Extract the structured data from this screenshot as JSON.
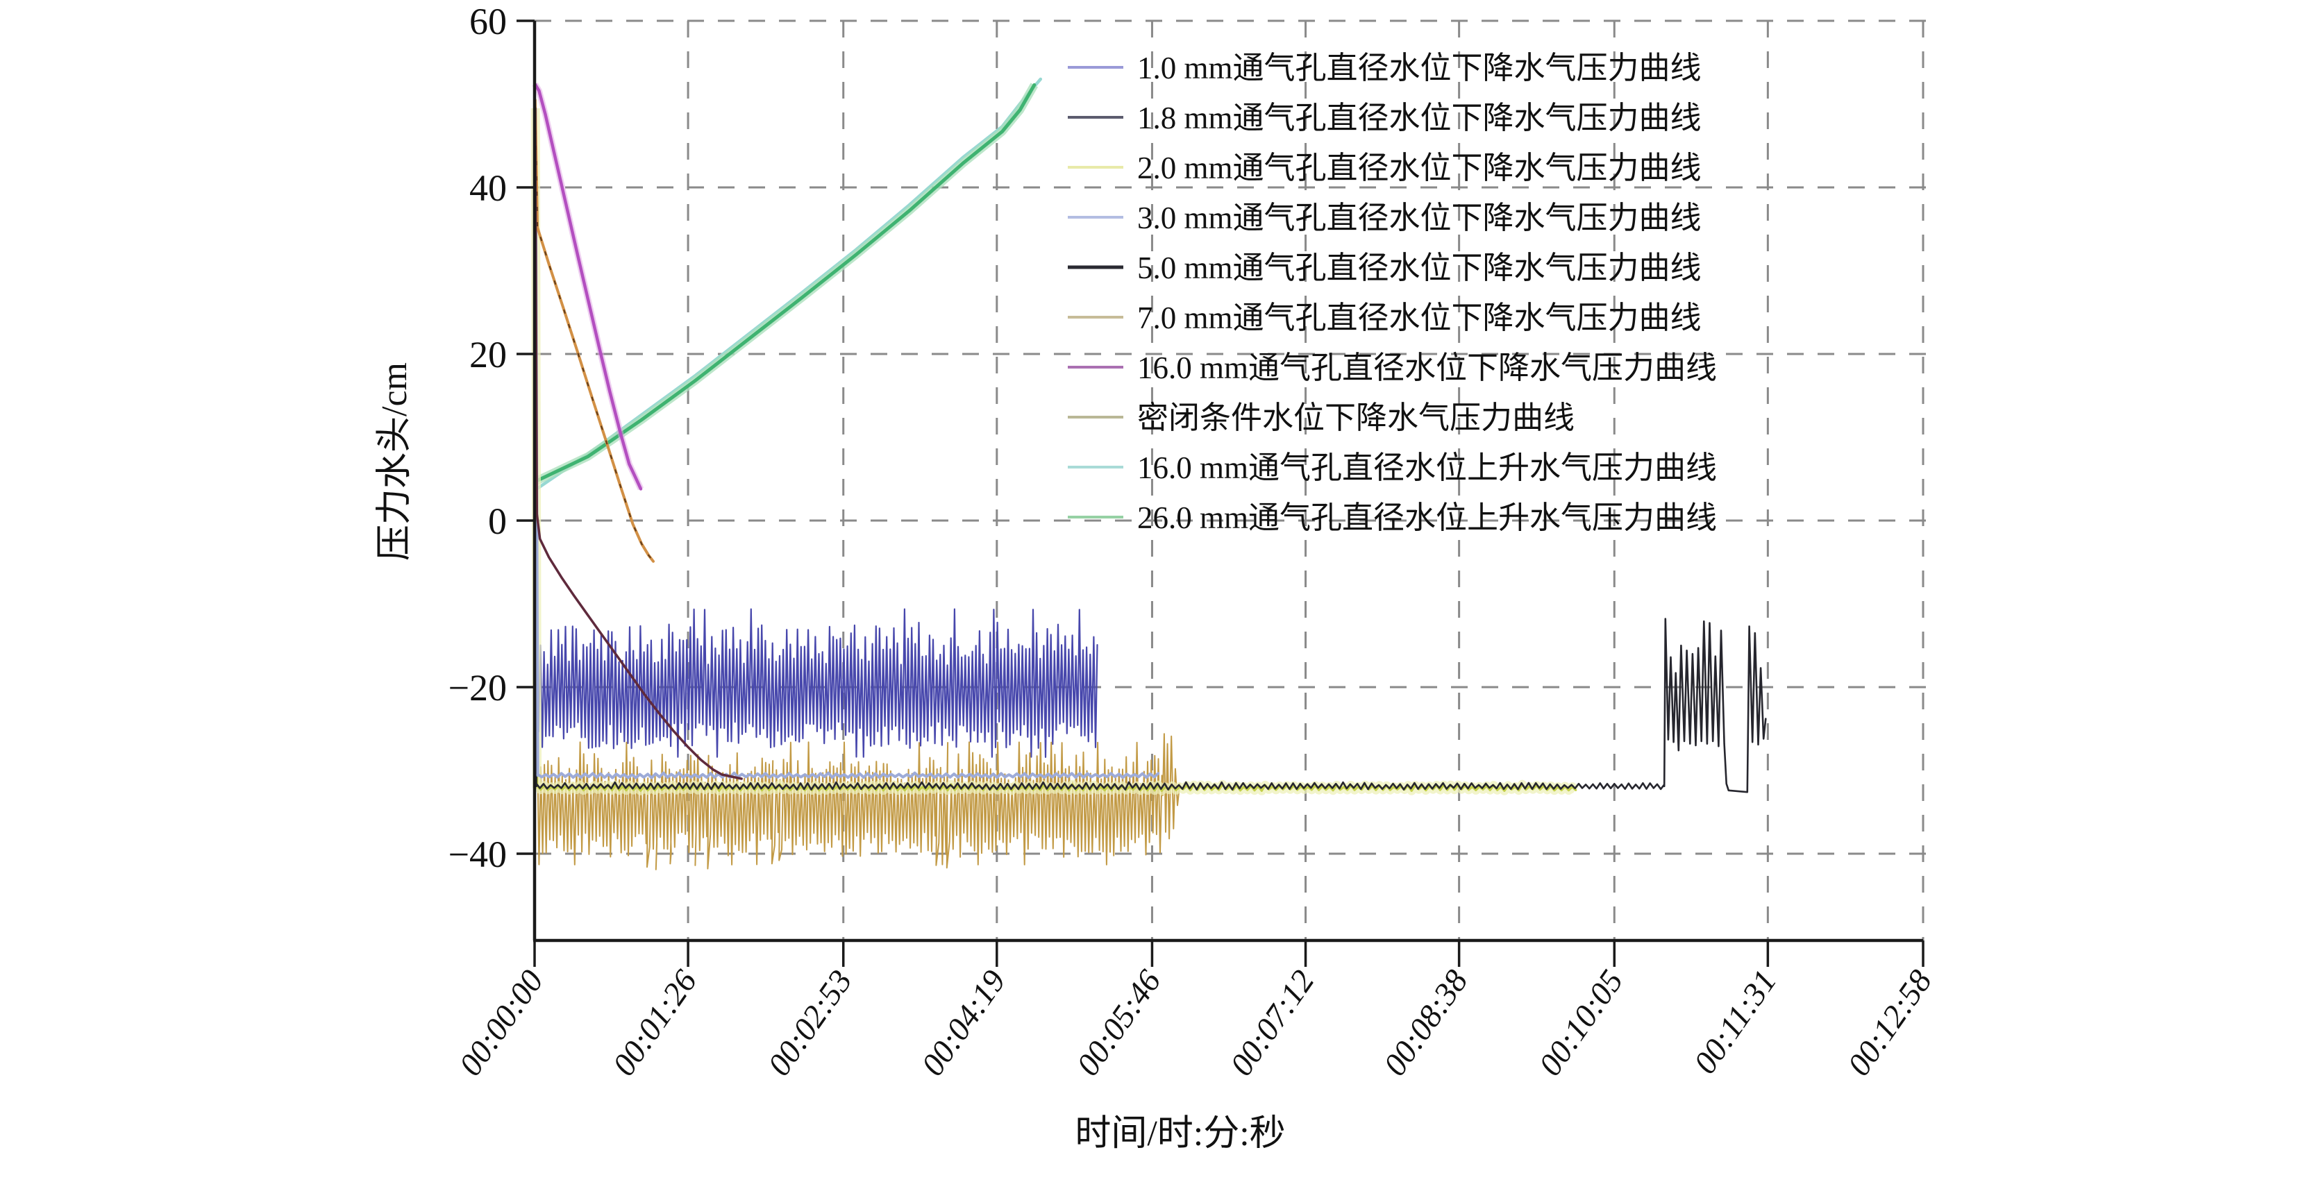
{
  "chart_data": {
    "type": "line",
    "title": "",
    "xlabel": "时间/时:分:秒",
    "ylabel": "压力水头/cm",
    "x_tick_labels": [
      "00:00:00",
      "00:01:26",
      "00:02:53",
      "00:04:19",
      "00:05:46",
      "00:07:12",
      "00:08:38",
      "00:10:05",
      "00:11:31",
      "00:12:58"
    ],
    "x_tick_seconds": [
      0,
      86,
      173,
      259,
      346,
      432,
      518,
      605,
      691,
      778
    ],
    "y_tick_labels": [
      "60",
      "40",
      "20",
      "0",
      "−20",
      "−40"
    ],
    "y_tick_values": [
      60,
      40,
      20,
      0,
      -20,
      -40
    ],
    "xlim_seconds": [
      0,
      778
    ],
    "ylim": [
      -50.4,
      60
    ],
    "grid": {
      "style": "dashed",
      "color": "#8a8a8a"
    },
    "legend_position": "upper-right-inside",
    "axis_color": "#1a1a1a",
    "series": [
      {
        "label": "1.0 mm通气孔直径水位下降水气压力曲线",
        "color": "#4747ac",
        "swatch": "#9a9ad8",
        "width": 2.2,
        "segments": [
          {
            "kind": "line",
            "pts": [
              [
                0.7,
                47
              ],
              [
                1.3,
                -12
              ]
            ]
          },
          {
            "kind": "noise",
            "t0": 1.3,
            "t1": 316,
            "dt": 1.0,
            "center": -20.2,
            "amp_up": 8.0,
            "amp_down": 7.2,
            "seed": 11
          }
        ]
      },
      {
        "label": "1.8 mm通气孔直径水位下降水气压力曲线",
        "color": "#5f2a3c",
        "swatch": "#5c5c6e",
        "width": 3.5,
        "segments": [
          {
            "kind": "line",
            "pts": [
              [
                0.35,
                49.5
              ],
              [
                1.3,
                0.8
              ],
              [
                3,
                -2.2
              ],
              [
                8,
                -4.4
              ],
              [
                15,
                -6.8
              ],
              [
                22,
                -9
              ],
              [
                30,
                -11.4
              ],
              [
                38,
                -13.8
              ],
              [
                46,
                -16.2
              ],
              [
                54,
                -18.6
              ],
              [
                62,
                -21
              ],
              [
                70,
                -23.2
              ],
              [
                78,
                -25.3
              ],
              [
                86,
                -27.2
              ],
              [
                93,
                -28.7
              ],
              [
                100,
                -29.9
              ],
              [
                105,
                -30.5
              ],
              [
                116,
                -31
              ]
            ]
          }
        ]
      },
      {
        "label": "2.0 mm通气孔直径水位下降水气压力曲线",
        "color": "#c3cf48",
        "swatch": "#e8eaa9",
        "width": 3.2,
        "glow": {
          "color": "#eef0ba",
          "width": 13,
          "opacity": 0.75
        },
        "segments": [
          {
            "kind": "line",
            "pts": [
              [
                0.45,
                49.5
              ],
              [
                1.4,
                -32.1
              ]
            ]
          },
          {
            "kind": "noise",
            "t0": 1.4,
            "t1": 585,
            "dt": 2.0,
            "center": -32.1,
            "amp_up": 0.35,
            "amp_down": 0.3,
            "seed": 3
          }
        ]
      },
      {
        "label": "3.0 mm通气孔直径水位下降水气压力曲线",
        "color": "#9dabd8",
        "swatch": "#b3bde2",
        "width": 4,
        "segments": [
          {
            "kind": "line",
            "pts": [
              [
                0.55,
                49.5
              ],
              [
                1.8,
                -30.6
              ]
            ]
          },
          {
            "kind": "noise",
            "t0": 1.8,
            "t1": 350,
            "dt": 2.2,
            "center": -30.6,
            "amp_up": 0.25,
            "amp_down": 0.25,
            "seed": 4
          }
        ]
      },
      {
        "label": "5.0 mm通气孔直径水位下降水气压力曲线",
        "color": "#26262e",
        "swatch": "#2a2a32",
        "width": 2.6,
        "segments": [
          {
            "kind": "line",
            "pts": [
              [
                0.25,
                49.5
              ],
              [
                1.0,
                -31.9
              ]
            ]
          },
          {
            "kind": "noise",
            "t0": 1.0,
            "t1": 633,
            "dt": 2.0,
            "center": -31.9,
            "amp_up": 0.4,
            "amp_down": 0.35,
            "seed": 5
          },
          {
            "kind": "line",
            "pts": [
              [
                633,
                -31.9
              ],
              [
                633.6,
                -11.8
              ],
              [
                635.2,
                -26.3
              ],
              [
                636.6,
                -16.4
              ],
              [
                638.2,
                -26.6
              ],
              [
                639.4,
                -18.3
              ],
              [
                641,
                -27.6
              ],
              [
                642.4,
                -15.0
              ],
              [
                644.2,
                -26.5
              ],
              [
                645.6,
                -15.6
              ],
              [
                647.4,
                -26.8
              ],
              [
                648.8,
                -16.0
              ],
              [
                650.6,
                -27.0
              ],
              [
                652,
                -15.3
              ],
              [
                653.8,
                -26.5
              ],
              [
                655.2,
                -12.1
              ],
              [
                657,
                -26.8
              ],
              [
                658.4,
                -12.3
              ],
              [
                660.2,
                -26.5
              ],
              [
                661.6,
                -16.3
              ],
              [
                663.4,
                -27.1
              ],
              [
                664.8,
                -13.2
              ],
              [
                666.6,
                -26.8
              ],
              [
                667.8,
                -31.6
              ],
              [
                669,
                -32.4
              ],
              [
                679.5,
                -32.6
              ],
              [
                680.6,
                -12.7
              ],
              [
                682.4,
                -26.6
              ],
              [
                683.8,
                -13.5
              ],
              [
                685.6,
                -26.9
              ],
              [
                687,
                -17.7
              ],
              [
                688.6,
                -26.2
              ],
              [
                689.8,
                -23.8
              ]
            ]
          }
        ]
      },
      {
        "label": "7.0 mm通气孔直径水位下降水气压力曲线",
        "color": "#d29045",
        "swatch": "#c7bc98",
        "width": 4,
        "overlay": {
          "color": "#5e3a1a",
          "width": 2,
          "dash": "6 16"
        },
        "segments": [
          {
            "kind": "line",
            "pts": [
              [
                0.3,
                50.5
              ],
              [
                1.6,
                35.2
              ],
              [
                8,
                30.8
              ],
              [
                16,
                25.6
              ],
              [
                24,
                20.3
              ],
              [
                32,
                14.9
              ],
              [
                40,
                9.6
              ],
              [
                48,
                4.2
              ],
              [
                55,
                -0.4
              ],
              [
                60,
                -2.8
              ],
              [
                64,
                -4.2
              ],
              [
                66.5,
                -4.9
              ]
            ]
          }
        ]
      },
      {
        "label": "16.0 mm通气孔直径水位下降水气压力曲线",
        "color": "#b34fc0",
        "swatch": "#aa70b2",
        "width": 4.5,
        "glow": {
          "color": "#de9fe2",
          "width": 9,
          "opacity": 0.5
        },
        "segments": [
          {
            "kind": "line",
            "pts": [
              [
                0.25,
                52.4
              ],
              [
                2.5,
                51.6
              ],
              [
                6,
                48.8
              ],
              [
                12,
                43.2
              ],
              [
                18,
                37.6
              ],
              [
                24,
                32
              ],
              [
                30,
                26.5
              ],
              [
                36,
                21
              ],
              [
                42,
                15.6
              ],
              [
                48,
                10.6
              ],
              [
                53,
                6.8
              ],
              [
                56.5,
                5.2
              ],
              [
                59.5,
                3.8
              ]
            ]
          }
        ]
      },
      {
        "label": "密闭条件水位下降水气压力曲线",
        "color": "#c29a45",
        "swatch": "#bab896",
        "width": 2,
        "segments": [
          {
            "kind": "noise",
            "t0": 1.5,
            "t1": 352,
            "dt": 1.0,
            "center": -33.8,
            "amp_up": 6.0,
            "amp_down": 6.6,
            "seed": 8,
            "spikes": [
              [
                63,
                -41.6
              ],
              [
                68,
                -41.9
              ],
              [
                76,
                -41.2
              ],
              [
                90,
                -41.4
              ],
              [
                97,
                -41.8
              ],
              [
                133,
                -41.2
              ],
              [
                137,
                -40.8
              ],
              [
                225,
                -41.4
              ],
              [
                231,
                -41.7
              ]
            ]
          },
          {
            "kind": "line",
            "pts": [
              [
                352,
                -33
              ],
              [
                352.8,
                -25.6
              ],
              [
                353.6,
                -37.4
              ],
              [
                354.6,
                -26.8
              ],
              [
                355.6,
                -38.2
              ],
              [
                356.8,
                -25.9
              ],
              [
                358,
                -37
              ],
              [
                359,
                -29.8
              ],
              [
                360.2,
                -34.2
              ],
              [
                361.5,
                -31.6
              ]
            ]
          }
        ]
      },
      {
        "label": "16.0 mm通气孔直径水位上升水气压力曲线",
        "color": "#97d8d2",
        "swatch": "#a9dbd7",
        "width": 4.5,
        "segments": [
          {
            "kind": "line",
            "pts": [
              [
                0.5,
                3.7
              ],
              [
                30,
                8.0
              ],
              [
                60,
                12.7
              ],
              [
                90,
                17.4
              ],
              [
                120,
                22.4
              ],
              [
                150,
                27.4
              ],
              [
                180,
                32.5
              ],
              [
                210,
                37.9
              ],
              [
                240,
                43.6
              ],
              [
                262,
                47.3
              ],
              [
                274,
                50.6
              ],
              [
                283.5,
                53.0
              ]
            ]
          }
        ]
      },
      {
        "label": "26.0 mm通气孔直径水位上升水气压力曲线",
        "color": "#3fb371",
        "swatch": "#96d1a4",
        "width": 5,
        "glow": {
          "color": "#ace0bd",
          "width": 12,
          "opacity": 0.8
        },
        "segments": [
          {
            "kind": "line",
            "pts": [
              [
                0.5,
                4.7
              ],
              [
                30,
                7.7
              ],
              [
                60,
                12.1
              ],
              [
                90,
                16.8
              ],
              [
                120,
                21.8
              ],
              [
                150,
                26.8
              ],
              [
                180,
                31.9
              ],
              [
                210,
                37.2
              ],
              [
                240,
                42.9
              ],
              [
                262,
                46.7
              ],
              [
                272,
                49.3
              ],
              [
                280,
                52.3
              ]
            ]
          }
        ]
      }
    ]
  },
  "layout_text": {
    "xlabel": "时间/时:分:秒",
    "ylabel": "压力水头/cm"
  }
}
